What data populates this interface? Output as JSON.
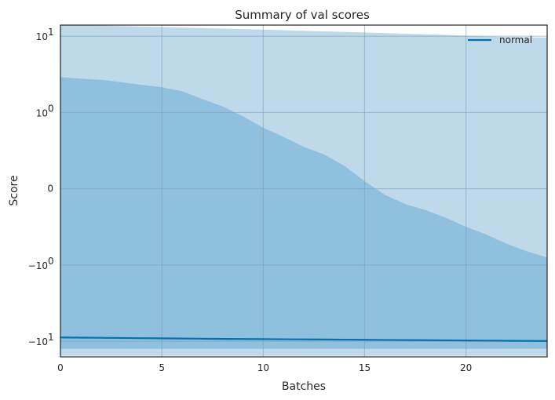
{
  "chart_data": {
    "type": "line",
    "title": "Summary of val scores",
    "xlabel": "Batches",
    "ylabel": "Score",
    "xlim": [
      0,
      24
    ],
    "yscale": "symlog",
    "linthresh": 1,
    "ylim": [
      -16,
      14
    ],
    "x_ticks": [
      0,
      5,
      10,
      15,
      20
    ],
    "y_ticks": [
      {
        "value": 10,
        "base": "10",
        "exp": "1"
      },
      {
        "value": 1,
        "base": "10",
        "exp": "0"
      },
      {
        "value": 0,
        "text": "0"
      },
      {
        "value": -1,
        "base": "−10",
        "exp": "0"
      },
      {
        "value": -10,
        "base": "−10",
        "exp": "1"
      }
    ],
    "grid": true,
    "legend_position": "top-right",
    "series": [
      {
        "name": "normal",
        "color": "#0072b2",
        "x": [
          0,
          1,
          2,
          3,
          4,
          5,
          6,
          7,
          8,
          9,
          10,
          11,
          12,
          13,
          14,
          15,
          16,
          17,
          18,
          19,
          20,
          21,
          22,
          23,
          24
        ],
        "mean": [
          -8.9,
          -8.95,
          -9.0,
          -9.05,
          -9.1,
          -9.15,
          -9.2,
          -9.25,
          -9.3,
          -9.33,
          -9.36,
          -9.4,
          -9.44,
          -9.48,
          -9.52,
          -9.56,
          -9.6,
          -9.64,
          -9.68,
          -9.72,
          -9.76,
          -9.8,
          -9.84,
          -9.88,
          -9.9
        ],
        "inner_upper": [
          2.9,
          2.78,
          2.68,
          2.5,
          2.3,
          2.15,
          1.9,
          1.5,
          1.2,
          0.95,
          0.8,
          0.68,
          0.55,
          0.45,
          0.3,
          0.1,
          -0.08,
          -0.2,
          -0.28,
          -0.38,
          -0.5,
          -0.6,
          -0.72,
          -0.82,
          -0.9
        ],
        "inner_lower": [
          -12.5,
          -12.5,
          -12.5,
          -12.5,
          -12.5,
          -12.5,
          -12.5,
          -12.5,
          -12.5,
          -12.5,
          -12.5,
          -12.5,
          -12.5,
          -12.5,
          -12.5,
          -12.5,
          -12.5,
          -12.5,
          -12.5,
          -12.5,
          -12.5,
          -12.5,
          -12.5,
          -12.5,
          -12.5
        ],
        "outer_upper": [
          14.2,
          14.0,
          13.8,
          13.6,
          13.4,
          13.2,
          13.0,
          12.8,
          12.6,
          12.4,
          12.2,
          12.0,
          11.8,
          11.6,
          11.4,
          11.2,
          11.0,
          10.8,
          10.6,
          10.4,
          10.2,
          10.0,
          9.8,
          9.7,
          9.6
        ],
        "outer_lower": [
          -15.5,
          -15.5,
          -15.5,
          -15.5,
          -15.5,
          -15.5,
          -15.5,
          -15.5,
          -15.5,
          -15.5,
          -15.5,
          -15.5,
          -15.5,
          -15.5,
          -15.5,
          -15.5,
          -15.5,
          -15.5,
          -15.5,
          -15.5,
          -15.5,
          -15.5,
          -15.5,
          -15.5,
          -15.5
        ]
      }
    ]
  }
}
